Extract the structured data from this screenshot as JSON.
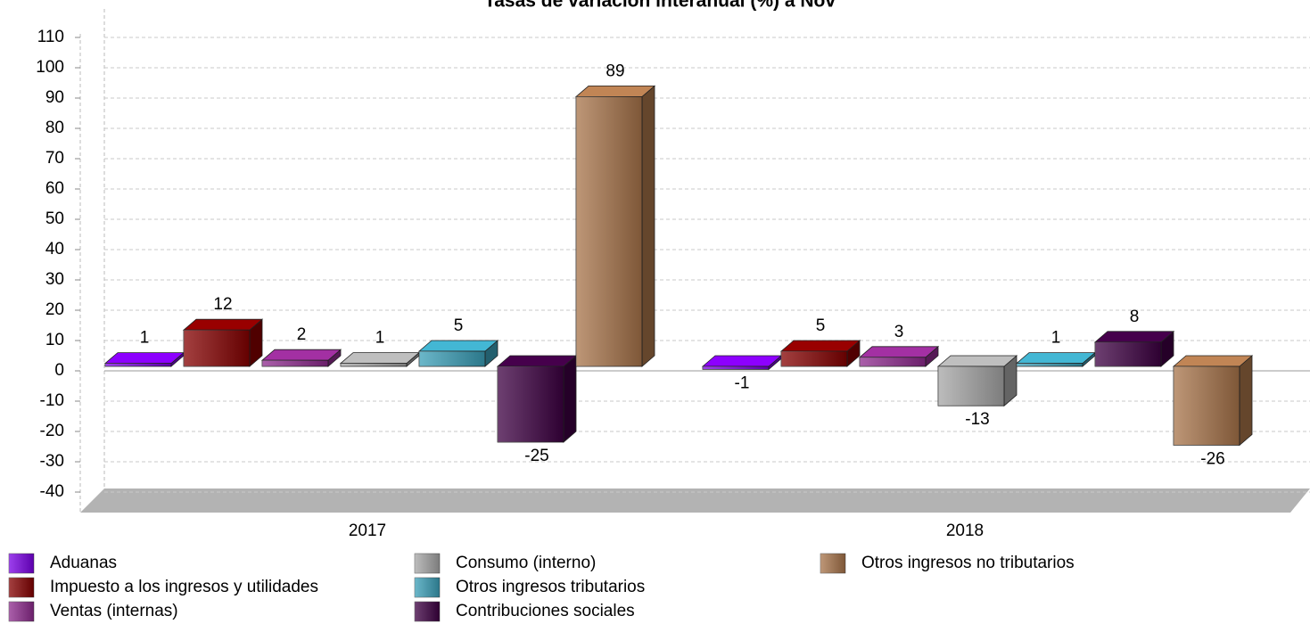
{
  "chart_data": {
    "type": "bar3d",
    "title": "Tasas de variación interanual (%) a Nov",
    "categories": [
      "2017",
      "2018"
    ],
    "series": [
      {
        "name": "Aduanas",
        "color": "#7b00e6",
        "values": [
          1,
          -1
        ]
      },
      {
        "name": "Impuesto a los ingresos y utilidades",
        "color": "#850000",
        "values": [
          12,
          5
        ]
      },
      {
        "name": "Ventas (internas)",
        "color": "#8e2a8e",
        "values": [
          2,
          3
        ]
      },
      {
        "name": "Consumo (interno)",
        "color": "#a6a6a6",
        "values": [
          1,
          -13
        ]
      },
      {
        "name": "Otros ingresos tributarios",
        "color": "#3a9fb8",
        "values": [
          5,
          1
        ]
      },
      {
        "name": "Contribuciones sociales",
        "color": "#3d0042",
        "values": [
          -25,
          8
        ]
      },
      {
        "name": "Otros ingresos no tributarios",
        "color": "#a8744a",
        "values": [
          89,
          -26
        ]
      }
    ],
    "ylim": [
      -40,
      110
    ],
    "yticks": [
      -40,
      -30,
      -20,
      -10,
      0,
      10,
      20,
      30,
      40,
      50,
      60,
      70,
      80,
      90,
      100,
      110
    ],
    "grid": true,
    "legend": "bottom"
  }
}
